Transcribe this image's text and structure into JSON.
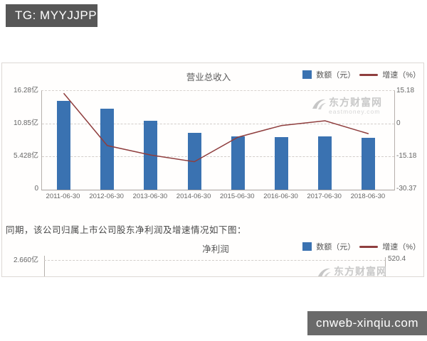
{
  "banners": {
    "top_left": "TG: MYYJJPP",
    "bottom_right": "cnweb-xinqiu.com"
  },
  "intro_text": "同期，该公司归属上市公司股东净利润及增速情况如下图：",
  "watermark": {
    "name": "东方财富网",
    "domain": "eastmoney.com"
  },
  "colors": {
    "bar_fill": "#3a72b1",
    "line_stroke": "#8f3e3e",
    "banner_top_bg": "#575757",
    "banner_bottom_bg": "#6a6a6a",
    "grid": "#d2cdc9"
  },
  "chart_data": [
    {
      "type": "bar",
      "title": "营业总收入",
      "legend": [
        {
          "label": "数额（元）",
          "marker": "bar"
        },
        {
          "label": "增速（%）",
          "marker": "line"
        }
      ],
      "categories": [
        "2011-06-30",
        "2012-06-30",
        "2013-06-30",
        "2014-06-30",
        "2015-06-30",
        "2016-06-30",
        "2017-06-30",
        "2018-06-30"
      ],
      "series": [
        {
          "name": "数额（元）",
          "type": "bar",
          "unit": "亿元",
          "values": [
            14.7,
            13.3,
            11.4,
            9.4,
            8.8,
            8.7,
            8.8,
            8.5
          ]
        },
        {
          "name": "增速（%）",
          "type": "line",
          "unit": "%",
          "values": [
            14.1,
            -10.2,
            -14.6,
            -17.7,
            -6.3,
            -0.9,
            1.3,
            -4.7
          ]
        }
      ],
      "left_axis": {
        "ticks": [
          "16.28亿",
          "10.85亿",
          "5.428亿",
          "0"
        ],
        "range": [
          0,
          16.28
        ],
        "unit": "亿"
      },
      "right_axis": {
        "ticks": [
          "15.18",
          "0",
          "-15.18",
          "-30.37"
        ],
        "range": [
          -30.37,
          15.18
        ],
        "unit": "%"
      },
      "grid": true,
      "legend_position": "top-right"
    },
    {
      "type": "bar",
      "title": "净利润",
      "legend": [
        {
          "label": "数额（元）",
          "marker": "bar"
        },
        {
          "label": "增速（%）",
          "marker": "line"
        }
      ],
      "left_axis": {
        "ticks": [
          "2.660亿"
        ]
      },
      "right_axis": {
        "ticks": [
          "520.4"
        ]
      }
    }
  ]
}
